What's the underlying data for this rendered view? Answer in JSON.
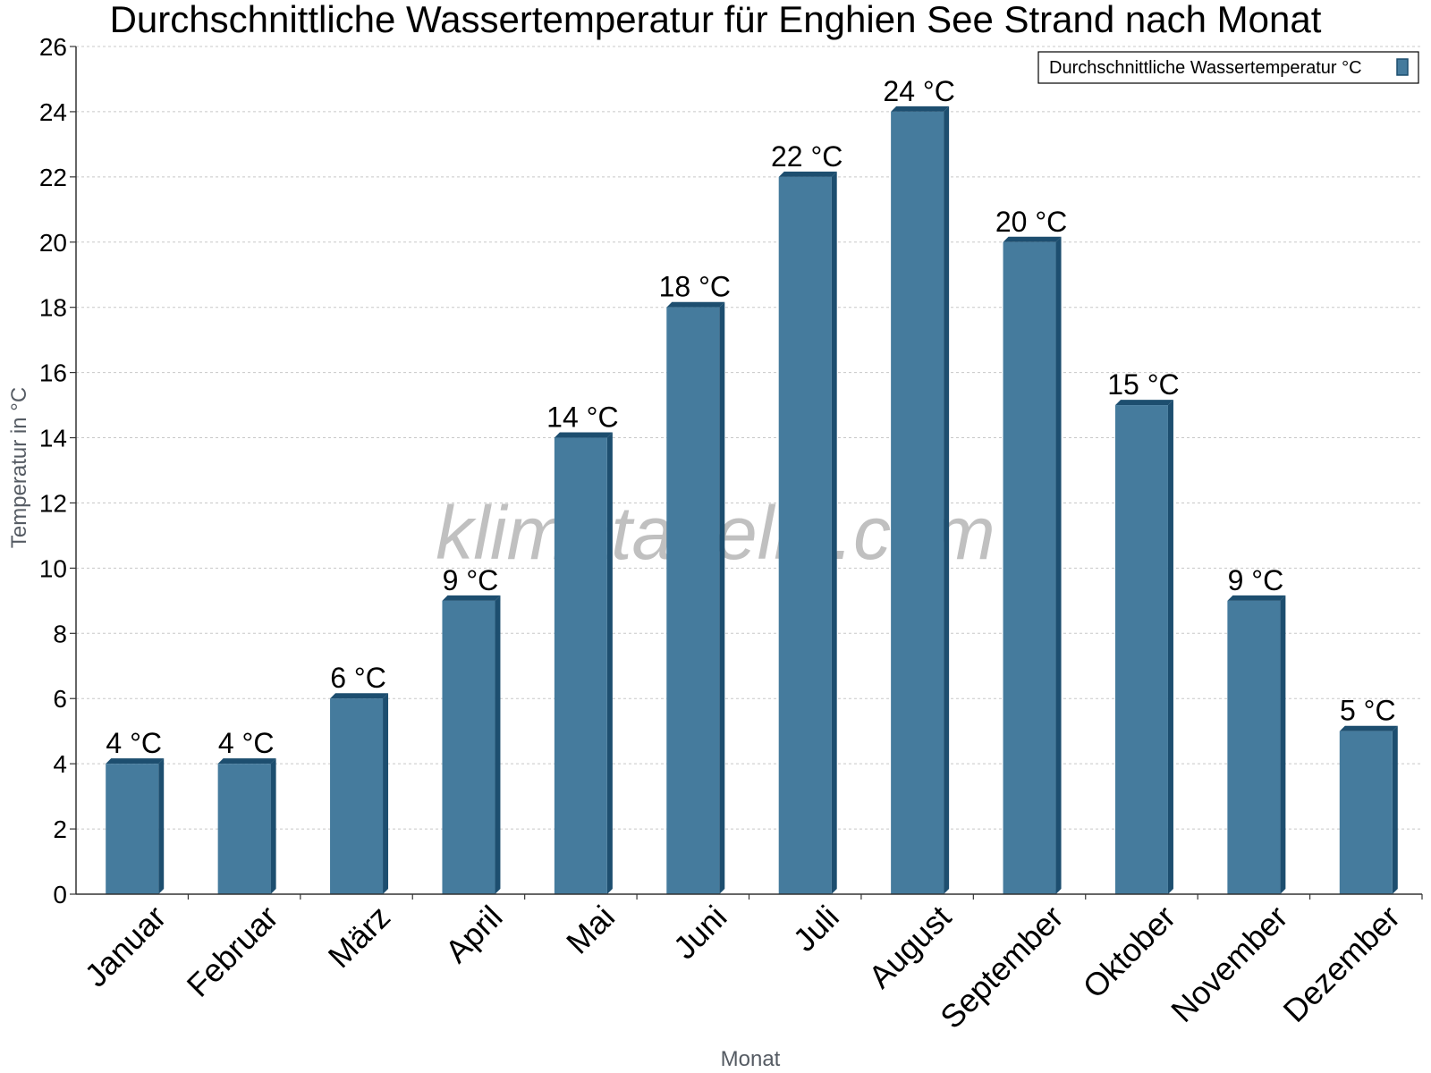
{
  "chart_data": {
    "type": "bar",
    "title": "Durchschnittliche Wassertemperatur für Enghien See Strand nach Monat",
    "xlabel": "Monat",
    "ylabel": "Temperatur in °C",
    "categories": [
      "Januar",
      "Februar",
      "März",
      "April",
      "Mai",
      "Juni",
      "Juli",
      "August",
      "September",
      "Oktober",
      "November",
      "Dezember"
    ],
    "series": [
      {
        "name": "Durchschnittliche Wassertemperatur °C",
        "values": [
          4,
          4,
          6,
          9,
          14,
          18,
          22,
          24,
          20,
          15,
          9,
          5
        ],
        "labels": [
          "4 °C",
          "4 °C",
          "6 °C",
          "9 °C",
          "14 °C",
          "18 °C",
          "22 °C",
          "24 °C",
          "20 °C",
          "15 °C",
          "9 °C",
          "5 °C"
        ],
        "color": "#457b9d",
        "edge_color": "#1d4e6f"
      }
    ],
    "ylim": [
      0,
      26
    ],
    "yticks": [
      0,
      2,
      4,
      6,
      8,
      10,
      12,
      14,
      16,
      18,
      20,
      22,
      24,
      26
    ],
    "grid": true,
    "legend_position": "top-right"
  },
  "watermark": "klimatabelle.com"
}
